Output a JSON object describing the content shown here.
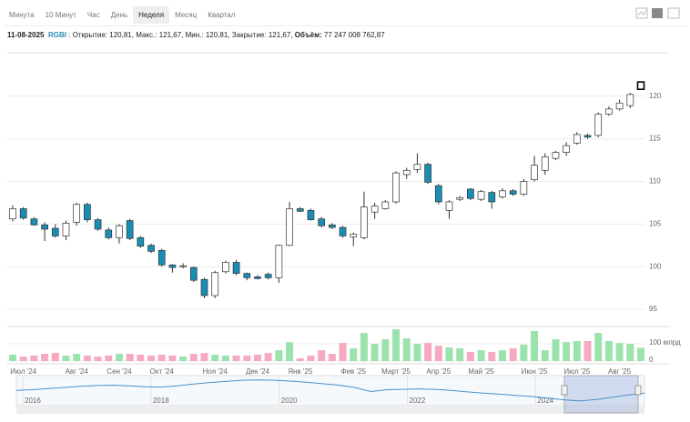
{
  "tabs": {
    "items": [
      "Минута",
      "10 Минут",
      "Час",
      "День",
      "Неделя",
      "Месяц",
      "Квартал"
    ],
    "selected": 4
  },
  "info": {
    "date": "11-08-2025",
    "ticker": "RGBI",
    "ticker_separator": ":",
    "separator": ",",
    "fields": [
      {
        "label": "Открытие:",
        "value": "120,81"
      },
      {
        "label": "Макс.:",
        "value": "121,67"
      },
      {
        "label": "Мин.:",
        "value": "120,81"
      },
      {
        "label": "Закрытие:",
        "value": "121,67"
      },
      {
        "label": "Объём:",
        "value": "77 247 008 762,87",
        "bold": true
      }
    ]
  },
  "chart_data": [
    {
      "type": "candlestick",
      "up_color": "#ffffff",
      "down_color": "#1a8db5",
      "highlighted": 59,
      "categories": [
        null,
        "Июл '24",
        null,
        null,
        null,
        null,
        "Авг '24",
        null,
        null,
        null,
        "Сен '24",
        null,
        null,
        null,
        "Окт '24",
        null,
        null,
        null,
        null,
        "Ноя '24",
        null,
        null,
        null,
        "Дек '24",
        null,
        null,
        null,
        "Янв '25",
        null,
        null,
        null,
        null,
        "Фев '25",
        null,
        null,
        null,
        "Март '25",
        null,
        null,
        null,
        "Апр '25",
        null,
        null,
        null,
        "Май '25",
        null,
        null,
        null,
        null,
        "Июн '25",
        null,
        null,
        null,
        "Июл '25",
        null,
        null,
        null,
        "Авг '25",
        null,
        null
      ],
      "open": [
        105.6,
        106.8,
        105.6,
        104.9,
        104.5,
        103.6,
        105.2,
        107.3,
        105.5,
        104.3,
        103.4,
        105.4,
        103.4,
        102.5,
        101.9,
        100.2,
        100.0,
        99.9,
        98.5,
        96.6,
        99.4,
        100.5,
        99.2,
        98.8,
        99.1,
        98.7,
        102.5,
        106.8,
        106.6,
        105.6,
        104.9,
        104.6,
        103.5,
        103.4,
        106.4,
        106.8,
        107.6,
        110.8,
        111.4,
        112.0,
        109.5,
        106.6,
        107.9,
        109.1,
        107.9,
        108.7,
        108.2,
        108.9,
        108.5,
        110.2,
        111.3,
        112.7,
        113.4,
        114.5,
        115.4,
        115.4,
        117.9,
        118.5,
        118.9,
        120.81
      ],
      "high": [
        107.2,
        107.0,
        105.8,
        105.2,
        105.0,
        105.4,
        107.5,
        107.5,
        105.7,
        104.6,
        105.0,
        105.6,
        103.6,
        102.7,
        102.1,
        100.3,
        100.4,
        100.0,
        98.7,
        99.5,
        100.7,
        100.8,
        99.3,
        99.0,
        99.3,
        102.6,
        107.6,
        107.0,
        106.8,
        105.8,
        105.1,
        104.8,
        104.0,
        108.8,
        107.5,
        107.8,
        111.2,
        111.6,
        113.3,
        112.2,
        109.7,
        107.8,
        108.3,
        109.2,
        109.0,
        108.9,
        109.2,
        109.1,
        110.3,
        113.0,
        113.3,
        113.6,
        114.6,
        115.8,
        115.6,
        118.1,
        118.8,
        119.6,
        120.4,
        121.67
      ],
      "low": [
        105.3,
        105.5,
        104.8,
        103.0,
        103.4,
        103.1,
        104.8,
        105.2,
        104.2,
        103.2,
        102.7,
        103.1,
        102.2,
        101.6,
        100.0,
        99.3,
        99.8,
        98.2,
        96.3,
        96.3,
        99.2,
        99.0,
        98.4,
        98.5,
        98.5,
        98.1,
        102.4,
        106.4,
        105.4,
        104.6,
        104.4,
        103.4,
        102.4,
        103.2,
        105.6,
        106.7,
        107.4,
        110.3,
        111.0,
        109.7,
        107.3,
        105.6,
        107.7,
        107.8,
        107.7,
        106.8,
        108.0,
        108.3,
        108.3,
        110.0,
        110.8,
        112.5,
        113.0,
        114.3,
        115.0,
        115.2,
        117.7,
        118.3,
        118.6,
        120.81
      ],
      "close": [
        106.8,
        105.7,
        104.9,
        104.4,
        103.6,
        105.1,
        107.3,
        105.5,
        104.4,
        103.4,
        104.8,
        103.3,
        102.4,
        101.8,
        100.2,
        99.9,
        100.1,
        98.4,
        96.6,
        99.3,
        100.5,
        99.2,
        98.7,
        98.6,
        98.7,
        102.5,
        106.8,
        106.5,
        105.5,
        104.8,
        104.6,
        103.6,
        103.8,
        107.0,
        107.1,
        107.6,
        111.0,
        111.3,
        112.0,
        109.9,
        107.6,
        107.6,
        108.1,
        108.0,
        108.8,
        107.6,
        108.9,
        108.5,
        110.0,
        111.9,
        112.9,
        113.4,
        114.2,
        115.5,
        115.2,
        117.9,
        118.5,
        119.2,
        120.2,
        121.67
      ],
      "ylim": [
        93.4,
        125.1
      ],
      "yticks": [
        95,
        100,
        105,
        110,
        115,
        120
      ],
      "grid": true
    },
    {
      "type": "bar",
      "up_color": "#9be3ad",
      "down_color": "#f7a9c2",
      "values": [
        37,
        26,
        32,
        42,
        47,
        32,
        42,
        32,
        26,
        32,
        42,
        42,
        37,
        32,
        37,
        32,
        26,
        42,
        47,
        37,
        32,
        32,
        32,
        37,
        47,
        63,
        110,
        16,
        32,
        63,
        42,
        105,
        74,
        163,
        100,
        126,
        184,
        132,
        100,
        105,
        89,
        79,
        74,
        53,
        63,
        53,
        63,
        74,
        95,
        174,
        63,
        126,
        110,
        116,
        116,
        163,
        116,
        105,
        100,
        77.25
      ],
      "ylim": [
        0,
        195
      ],
      "yticks": [
        0,
        {
          "value": 100,
          "label": "100 млрд"
        }
      ]
    },
    {
      "type": "line",
      "color": "#4a90c8",
      "values": [
        128,
        130,
        133,
        136,
        139,
        141,
        142,
        140,
        138,
        137,
        140,
        145,
        149,
        152,
        155,
        156,
        155,
        153,
        150,
        146,
        142,
        136,
        125,
        130,
        131,
        132,
        131,
        128,
        124,
        121,
        118,
        115,
        112,
        108,
        103,
        100,
        104,
        110,
        116,
        121
      ],
      "xlim": [
        2015.9,
        2025.7
      ],
      "xticks": [
        2016,
        2018,
        2020,
        2022,
        2024
      ],
      "ylim": [
        90,
        165
      ],
      "selected_range": [
        2024.45,
        2025.6
      ]
    }
  ]
}
